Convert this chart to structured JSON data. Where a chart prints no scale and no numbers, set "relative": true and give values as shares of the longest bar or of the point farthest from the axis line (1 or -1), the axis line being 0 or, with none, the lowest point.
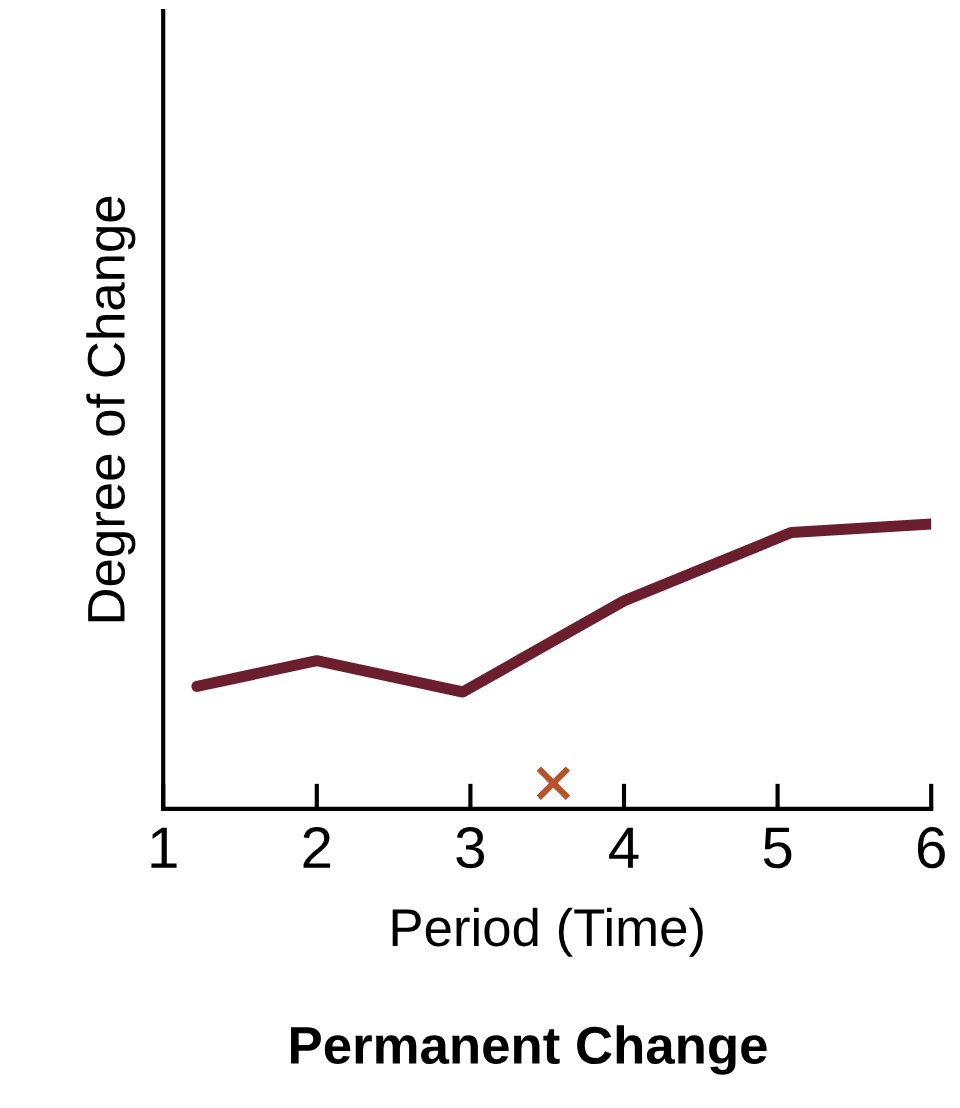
{
  "chart_data": {
    "type": "line",
    "title": "Permanent Change",
    "xlabel": "Period (Time)",
    "ylabel": "Degree of Change",
    "relative": true,
    "tick_labels": "x",
    "xlim": [
      1,
      6
    ],
    "xticks": [
      1,
      2,
      3,
      4,
      5,
      6
    ],
    "grid": false,
    "legend": false,
    "series": [
      {
        "color": "#6b1e2e",
        "x": [
          1.22,
          2,
          2.95,
          4,
          5.09,
          6
        ],
        "values": [
          0.43,
          0.52,
          0.41,
          0.73,
          0.97,
          1.0
        ],
        "marker": "none"
      },
      {
        "type": "scatter",
        "color": "#b5532a",
        "x": [
          3.54
        ],
        "values": [
          0.09
        ],
        "marker": "cross"
      }
    ]
  }
}
